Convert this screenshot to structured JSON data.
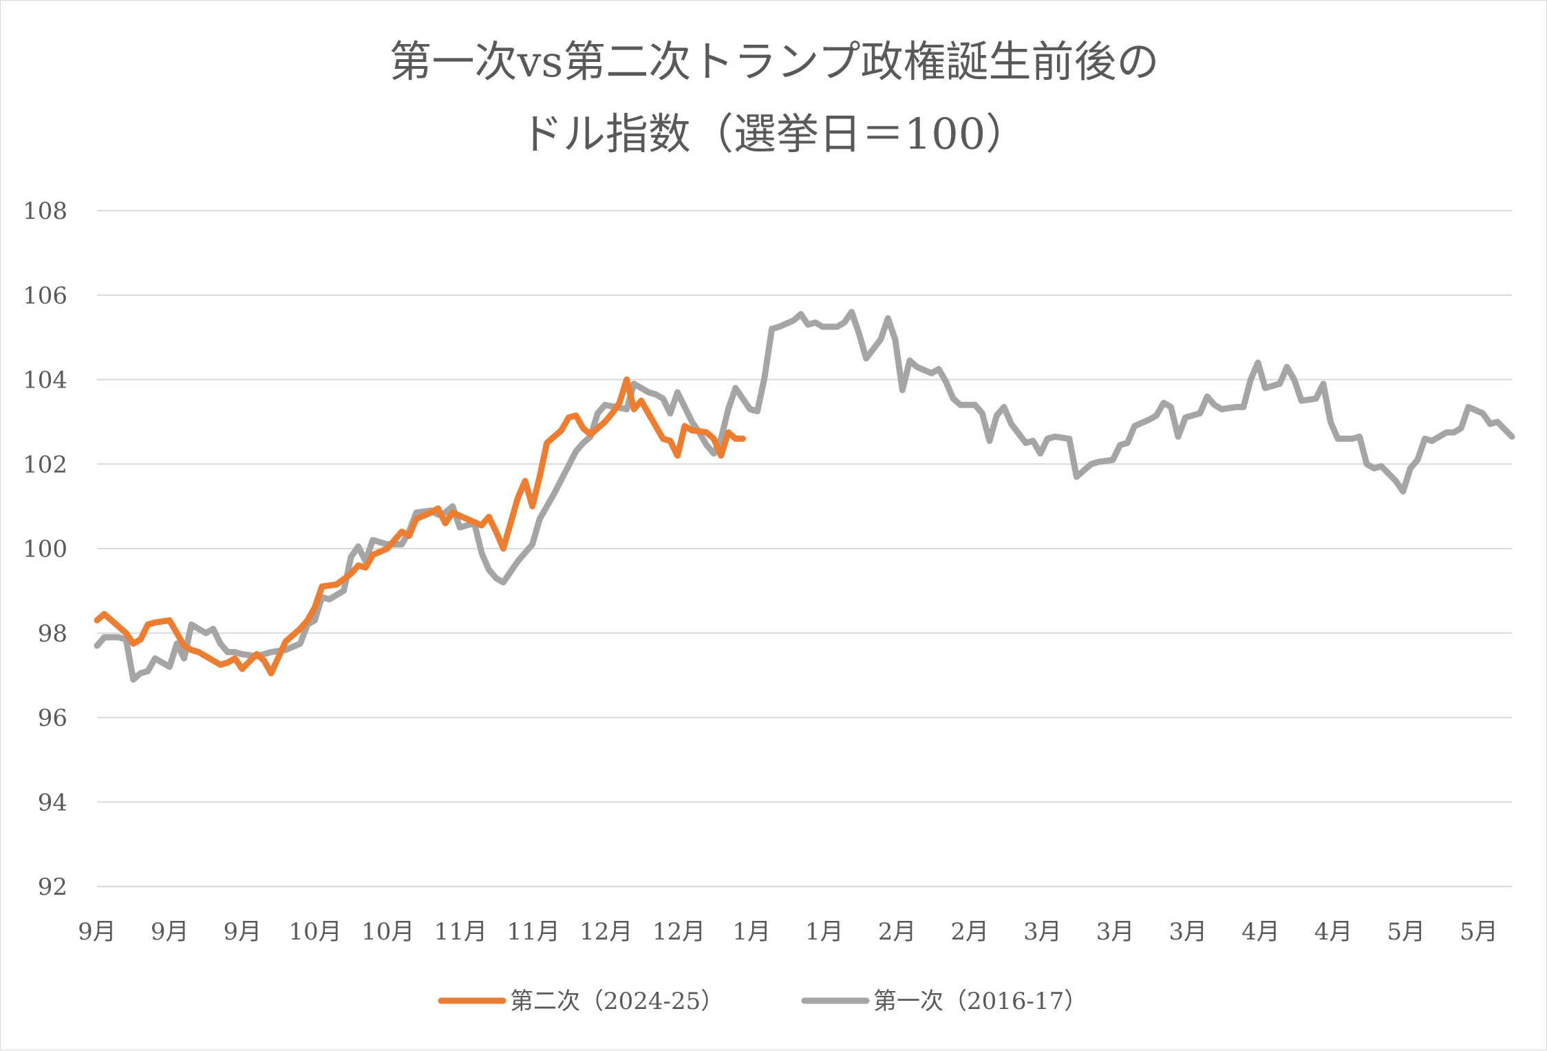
{
  "chart_data": {
    "type": "line",
    "title": [
      "第一次vs第二次トランプ政権誕生前後の",
      "ドル指数（選挙日＝100）"
    ],
    "y_ticks": [
      "92",
      "94",
      "96",
      "98",
      "100",
      "102",
      "104",
      "106",
      "108"
    ],
    "ylim": [
      92,
      108
    ],
    "x_ticks": [
      "9月",
      "9月",
      "9月",
      "10月",
      "10月",
      "11月",
      "11月",
      "12月",
      "12月",
      "1月",
      "1月",
      "2月",
      "2月",
      "3月",
      "3月",
      "3月",
      "4月",
      "4月",
      "5月",
      "5月"
    ],
    "x_range": [
      0,
      195
    ],
    "grid": "horizontal",
    "legend_position": "bottom",
    "series": [
      {
        "name": "第二次（2024-25）",
        "color": "#ED7D31",
        "points": [
          [
            0,
            98.3
          ],
          [
            1,
            98.45
          ],
          [
            3,
            98.15
          ],
          [
            4,
            98.0
          ],
          [
            5,
            97.75
          ],
          [
            6,
            97.85
          ],
          [
            7,
            98.2
          ],
          [
            8,
            98.25
          ],
          [
            10,
            98.3
          ],
          [
            11,
            98.0
          ],
          [
            12,
            97.7
          ],
          [
            13,
            97.6
          ],
          [
            14,
            97.55
          ],
          [
            16,
            97.35
          ],
          [
            17,
            97.25
          ],
          [
            18,
            97.3
          ],
          [
            19,
            97.4
          ],
          [
            20,
            97.15
          ],
          [
            22,
            97.5
          ],
          [
            23,
            97.35
          ],
          [
            24,
            97.05
          ],
          [
            26,
            97.8
          ],
          [
            28,
            98.1
          ],
          [
            29,
            98.3
          ],
          [
            30,
            98.6
          ],
          [
            31,
            99.1
          ],
          [
            33,
            99.15
          ],
          [
            35,
            99.4
          ],
          [
            36,
            99.6
          ],
          [
            37,
            99.55
          ],
          [
            38,
            99.85
          ],
          [
            40,
            100.0
          ],
          [
            41,
            100.2
          ],
          [
            42,
            100.4
          ],
          [
            43,
            100.3
          ],
          [
            44,
            100.7
          ],
          [
            46,
            100.85
          ],
          [
            47,
            100.95
          ],
          [
            48,
            100.6
          ],
          [
            49,
            100.85
          ],
          [
            51,
            100.7
          ],
          [
            53,
            100.55
          ],
          [
            54,
            100.75
          ],
          [
            55,
            100.4
          ],
          [
            56,
            100.0
          ],
          [
            58,
            101.2
          ],
          [
            59,
            101.6
          ],
          [
            60,
            101.0
          ],
          [
            61,
            101.7
          ],
          [
            62,
            102.5
          ],
          [
            64,
            102.8
          ],
          [
            65,
            103.1
          ],
          [
            66,
            103.15
          ],
          [
            67,
            102.85
          ],
          [
            68,
            102.7
          ],
          [
            70,
            103.0
          ],
          [
            71,
            103.2
          ],
          [
            72,
            103.45
          ],
          [
            73,
            104.0
          ],
          [
            74,
            103.3
          ],
          [
            75,
            103.5
          ],
          [
            76,
            103.2
          ],
          [
            77,
            102.9
          ],
          [
            78,
            102.6
          ],
          [
            79,
            102.55
          ],
          [
            80,
            102.2
          ],
          [
            81,
            102.9
          ],
          [
            82,
            102.8
          ],
          [
            84,
            102.75
          ],
          [
            85,
            102.6
          ],
          [
            86,
            102.2
          ],
          [
            87,
            102.75
          ],
          [
            88,
            102.6
          ],
          [
            89,
            102.6
          ]
        ]
      },
      {
        "name": "第一次（2016-17）",
        "color": "#A5A5A5",
        "points": [
          [
            0,
            97.7
          ],
          [
            1,
            97.9
          ],
          [
            3,
            97.9
          ],
          [
            4,
            97.85
          ],
          [
            5,
            96.9
          ],
          [
            6,
            97.05
          ],
          [
            7,
            97.1
          ],
          [
            8,
            97.4
          ],
          [
            9,
            97.3
          ],
          [
            10,
            97.2
          ],
          [
            11,
            97.75
          ],
          [
            12,
            97.4
          ],
          [
            13,
            98.2
          ],
          [
            14,
            98.1
          ],
          [
            15,
            98.0
          ],
          [
            16,
            98.1
          ],
          [
            17,
            97.75
          ],
          [
            18,
            97.55
          ],
          [
            19,
            97.55
          ],
          [
            20,
            97.5
          ],
          [
            22,
            97.45
          ],
          [
            24,
            97.55
          ],
          [
            26,
            97.6
          ],
          [
            28,
            97.75
          ],
          [
            29,
            98.2
          ],
          [
            30,
            98.3
          ],
          [
            31,
            98.85
          ],
          [
            32,
            98.8
          ],
          [
            34,
            99.0
          ],
          [
            35,
            99.8
          ],
          [
            36,
            100.05
          ],
          [
            37,
            99.7
          ],
          [
            38,
            100.2
          ],
          [
            40,
            100.1
          ],
          [
            41,
            100.1
          ],
          [
            42,
            100.1
          ],
          [
            43,
            100.4
          ],
          [
            44,
            100.85
          ],
          [
            46,
            100.9
          ],
          [
            47,
            100.8
          ],
          [
            48,
            100.85
          ],
          [
            49,
            101.0
          ],
          [
            50,
            100.5
          ],
          [
            52,
            100.6
          ],
          [
            53,
            99.9
          ],
          [
            54,
            99.5
          ],
          [
            55,
            99.3
          ],
          [
            56,
            99.2
          ],
          [
            58,
            99.7
          ],
          [
            59,
            99.9
          ],
          [
            60,
            100.1
          ],
          [
            61,
            100.7
          ],
          [
            63,
            101.3
          ],
          [
            66,
            102.3
          ],
          [
            67,
            102.5
          ],
          [
            68,
            102.65
          ],
          [
            69,
            103.2
          ],
          [
            70,
            103.4
          ],
          [
            73,
            103.3
          ],
          [
            74,
            103.9
          ],
          [
            76,
            103.7
          ],
          [
            77,
            103.65
          ],
          [
            78,
            103.55
          ],
          [
            79,
            103.2
          ],
          [
            80,
            103.7
          ],
          [
            82,
            103.0
          ],
          [
            83,
            102.75
          ],
          [
            84,
            102.45
          ],
          [
            85,
            102.25
          ],
          [
            86,
            102.6
          ],
          [
            87,
            103.3
          ],
          [
            88,
            103.8
          ],
          [
            90,
            103.3
          ],
          [
            91,
            103.25
          ],
          [
            92,
            104.05
          ],
          [
            93,
            105.2
          ],
          [
            94,
            105.25
          ],
          [
            96,
            105.4
          ],
          [
            97,
            105.55
          ],
          [
            98,
            105.3
          ],
          [
            99,
            105.35
          ],
          [
            100,
            105.25
          ],
          [
            102,
            105.25
          ],
          [
            103,
            105.35
          ],
          [
            104,
            105.6
          ],
          [
            105,
            105.1
          ],
          [
            106,
            104.5
          ],
          [
            108,
            104.95
          ],
          [
            109,
            105.45
          ],
          [
            110,
            104.95
          ],
          [
            111,
            103.75
          ],
          [
            112,
            104.45
          ],
          [
            113,
            104.3
          ],
          [
            115,
            104.15
          ],
          [
            116,
            104.25
          ],
          [
            117,
            103.95
          ],
          [
            118,
            103.55
          ],
          [
            119,
            103.4
          ],
          [
            121,
            103.4
          ],
          [
            122,
            103.2
          ],
          [
            123,
            102.55
          ],
          [
            124,
            103.15
          ],
          [
            125,
            103.35
          ],
          [
            126,
            102.95
          ],
          [
            128,
            102.5
          ],
          [
            129,
            102.55
          ],
          [
            130,
            102.25
          ],
          [
            131,
            102.6
          ],
          [
            132,
            102.65
          ],
          [
            134,
            102.6
          ],
          [
            135,
            101.7
          ],
          [
            136,
            101.85
          ],
          [
            137,
            102.0
          ],
          [
            138,
            102.05
          ],
          [
            140,
            102.1
          ],
          [
            141,
            102.45
          ],
          [
            142,
            102.5
          ],
          [
            143,
            102.9
          ],
          [
            145,
            103.05
          ],
          [
            146,
            103.15
          ],
          [
            147,
            103.45
          ],
          [
            148,
            103.35
          ],
          [
            149,
            102.65
          ],
          [
            150,
            103.1
          ],
          [
            152,
            103.2
          ],
          [
            153,
            103.6
          ],
          [
            154,
            103.4
          ],
          [
            155,
            103.3
          ],
          [
            157,
            103.35
          ],
          [
            158,
            103.35
          ],
          [
            159,
            104.0
          ],
          [
            160,
            104.4
          ],
          [
            161,
            103.8
          ],
          [
            163,
            103.9
          ],
          [
            164,
            104.3
          ],
          [
            165,
            104.0
          ],
          [
            166,
            103.5
          ],
          [
            168,
            103.55
          ],
          [
            169,
            103.9
          ],
          [
            170,
            103.0
          ],
          [
            171,
            102.6
          ],
          [
            173,
            102.6
          ],
          [
            174,
            102.65
          ],
          [
            175,
            102.0
          ],
          [
            176,
            101.9
          ],
          [
            177,
            101.95
          ],
          [
            179,
            101.6
          ],
          [
            180,
            101.35
          ],
          [
            181,
            101.9
          ],
          [
            182,
            102.1
          ],
          [
            183,
            102.6
          ],
          [
            184,
            102.55
          ],
          [
            186,
            102.75
          ],
          [
            187,
            102.75
          ],
          [
            188,
            102.85
          ],
          [
            189,
            103.35
          ],
          [
            191,
            103.2
          ],
          [
            192,
            102.95
          ],
          [
            193,
            103.0
          ],
          [
            195,
            102.65
          ]
        ]
      }
    ]
  }
}
